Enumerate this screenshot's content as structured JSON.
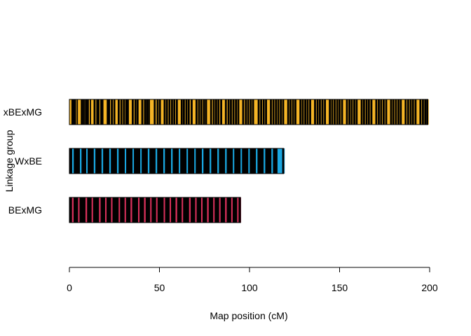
{
  "chart_data": {
    "type": "linkage-map",
    "title": "",
    "xlabel": "Map position (cM)",
    "ylabel": "Linkage group",
    "xlim": [
      0,
      200
    ],
    "xticks": [
      0,
      50,
      100,
      150,
      200
    ],
    "grid": false,
    "groups": [
      {
        "label": "xBExMG",
        "length": 199,
        "color": "#f5b526",
        "markers": [
          0.4,
          1.6,
          2.3,
          3.1,
          4.5,
          5.2,
          6.8,
          7.9,
          9.1,
          10.2,
          11.8,
          12.5,
          13.9,
          15.4,
          16.1,
          17.6,
          18.3,
          19.8,
          21.2,
          22.0,
          23.5,
          24.9,
          26.1,
          27.3,
          28.8,
          30.2,
          31.5,
          32.4,
          33.9,
          35.1,
          36.6,
          37.8,
          39.2,
          40.4,
          41.9,
          43.0,
          44.1,
          45.2,
          45.8,
          46.6,
          47.3,
          48.9,
          50.2,
          51.6,
          52.8,
          54.1,
          55.5,
          56.9,
          58.2,
          59.6,
          60.8,
          62.3,
          63.5,
          64.9,
          66.2,
          67.8,
          69.1,
          70.5,
          71.9,
          73.2,
          74.6,
          75.8,
          77.3,
          78.6,
          80.1,
          81.4,
          82.7,
          84.2,
          85.5,
          86.8,
          88.3,
          89.6,
          91.0,
          92.4,
          93.7,
          95.1,
          96.4,
          97.9,
          99.2,
          100.6,
          101.9,
          103.3,
          104.1,
          105.0,
          106.4,
          107.8,
          109.1,
          110.5,
          111.8,
          113.2,
          114.6,
          115.9,
          117.3,
          118.6,
          120.0,
          121.4,
          122.7,
          124.1,
          125.4,
          126.8,
          128.2,
          129.5,
          130.9,
          132.2,
          133.6,
          135.0,
          136.3,
          137.7,
          139.0,
          140.4,
          141.8,
          143.1,
          144.5,
          145.8,
          147.2,
          148.6,
          149.9,
          151.3,
          152.6,
          154.0,
          155.4,
          156.7,
          158.1,
          159.4,
          160.8,
          162.2,
          163.5,
          164.9,
          166.2,
          167.6,
          169.0,
          170.3,
          171.7,
          173.0,
          174.4,
          175.8,
          177.1,
          178.5,
          179.8,
          181.2,
          182.6,
          183.9,
          185.3,
          186.6,
          188.0,
          189.4,
          190.7,
          192.1,
          193.4,
          194.8,
          196.2,
          197.5,
          198.6
        ],
        "highlights": [
          0.4,
          5.2,
          12.5,
          19.8,
          26.1,
          33.9,
          39.2,
          45.2,
          45.8,
          46.6,
          51.6,
          60.8,
          69.1,
          77.3,
          85.5,
          95.1,
          103.3,
          104.1,
          110.5,
          120.0,
          126.8,
          135.0,
          143.1,
          152.6,
          160.8,
          169.0,
          177.1,
          185.3,
          193.4
        ]
      },
      {
        "label": "WxBE",
        "length": 119,
        "color": "#1aa7e0",
        "markers": [
          0.3,
          1.2,
          2.0,
          2.9,
          3.8,
          4.6,
          5.5,
          6.3,
          7.2,
          8.0,
          8.9,
          9.8,
          10.6,
          11.5,
          12.3,
          13.2,
          14.0,
          14.9,
          15.8,
          16.6,
          17.5,
          18.3,
          19.2,
          20.0,
          20.9,
          21.8,
          22.6,
          23.5,
          24.3,
          25.2,
          26.0,
          26.9,
          27.8,
          28.6,
          29.5,
          30.3,
          31.2,
          32.0,
          32.9,
          33.8,
          34.6,
          35.5,
          36.3,
          37.2,
          38.0,
          38.9,
          39.8,
          40.6,
          41.5,
          42.3,
          43.2,
          44.0,
          44.9,
          45.8,
          46.6,
          47.5,
          48.3,
          49.2,
          50.0,
          50.9,
          51.8,
          52.6,
          53.5,
          54.3,
          55.2,
          56.0,
          56.9,
          57.8,
          58.6,
          59.5,
          60.3,
          61.2,
          62.0,
          62.9,
          63.8,
          64.6,
          65.5,
          66.3,
          67.2,
          68.0,
          68.9,
          69.8,
          70.6,
          71.5,
          72.3,
          73.2,
          74.0,
          74.9,
          75.8,
          76.6,
          77.5,
          78.3,
          79.2,
          80.0,
          80.9,
          81.8,
          82.6,
          83.5,
          84.3,
          85.2,
          86.0,
          86.9,
          87.8,
          88.6,
          89.5,
          90.3,
          91.2,
          92.0,
          92.9,
          93.8,
          94.6,
          95.5,
          96.3,
          97.2,
          98.0,
          98.9,
          99.8,
          100.6,
          101.5,
          102.3,
          103.2,
          104.0,
          104.9,
          105.8,
          106.6,
          107.5,
          108.3,
          109.2,
          110.0,
          110.9,
          111.8,
          112.6,
          113.5,
          114.3,
          115.2,
          116.0,
          116.9,
          117.8,
          118.6
        ],
        "highlights": [
          2.0,
          6.3,
          9.8,
          14.0,
          18.3,
          22.6,
          26.9,
          31.2,
          35.5,
          39.8,
          44.0,
          48.3,
          52.6,
          56.9,
          61.2,
          65.5,
          69.8,
          74.0,
          78.3,
          82.6,
          86.9,
          91.2,
          95.5,
          99.8,
          104.0,
          108.3,
          112.6,
          116.0,
          116.9,
          117.8
        ]
      },
      {
        "label": "BExMG",
        "length": 95,
        "color": "#d8315b",
        "markers": [
          0.3,
          1.1,
          1.9,
          2.8,
          3.6,
          4.4,
          5.3,
          6.1,
          6.9,
          7.8,
          8.6,
          9.4,
          10.3,
          11.1,
          11.9,
          12.8,
          13.6,
          14.4,
          15.3,
          16.1,
          16.9,
          17.8,
          18.6,
          19.4,
          20.3,
          21.1,
          21.9,
          22.8,
          23.6,
          24.4,
          25.3,
          26.1,
          26.9,
          27.8,
          28.6,
          29.4,
          30.3,
          31.1,
          31.9,
          32.8,
          33.6,
          34.4,
          35.3,
          36.1,
          36.9,
          37.8,
          38.6,
          39.4,
          40.3,
          41.1,
          41.9,
          42.8,
          43.6,
          44.4,
          45.3,
          46.1,
          46.9,
          47.8,
          48.6,
          49.4,
          50.3,
          51.1,
          51.9,
          52.8,
          53.6,
          54.4,
          55.3,
          56.1,
          56.9,
          57.8,
          58.6,
          59.4,
          60.3,
          61.1,
          61.9,
          62.8,
          63.6,
          64.4,
          65.3,
          66.1,
          66.9,
          67.8,
          68.6,
          69.4,
          70.3,
          71.1,
          71.9,
          72.8,
          73.6,
          74.4,
          75.3,
          76.1,
          76.9,
          77.8,
          78.6,
          79.4,
          80.3,
          81.1,
          81.9,
          82.8,
          83.6,
          84.4,
          85.3,
          86.1,
          86.9,
          87.8,
          88.6,
          89.4,
          90.3,
          91.1,
          91.9,
          92.8,
          93.6,
          94.4
        ],
        "highlights": [
          1.9,
          5.3,
          9.4,
          12.8,
          16.9,
          20.3,
          23.6,
          27.8,
          31.1,
          34.4,
          38.6,
          41.9,
          45.3,
          48.6,
          52.8,
          56.1,
          59.4,
          62.8,
          66.9,
          70.3,
          73.6,
          76.9,
          80.3,
          83.6,
          86.9,
          90.3,
          93.6
        ]
      }
    ]
  }
}
